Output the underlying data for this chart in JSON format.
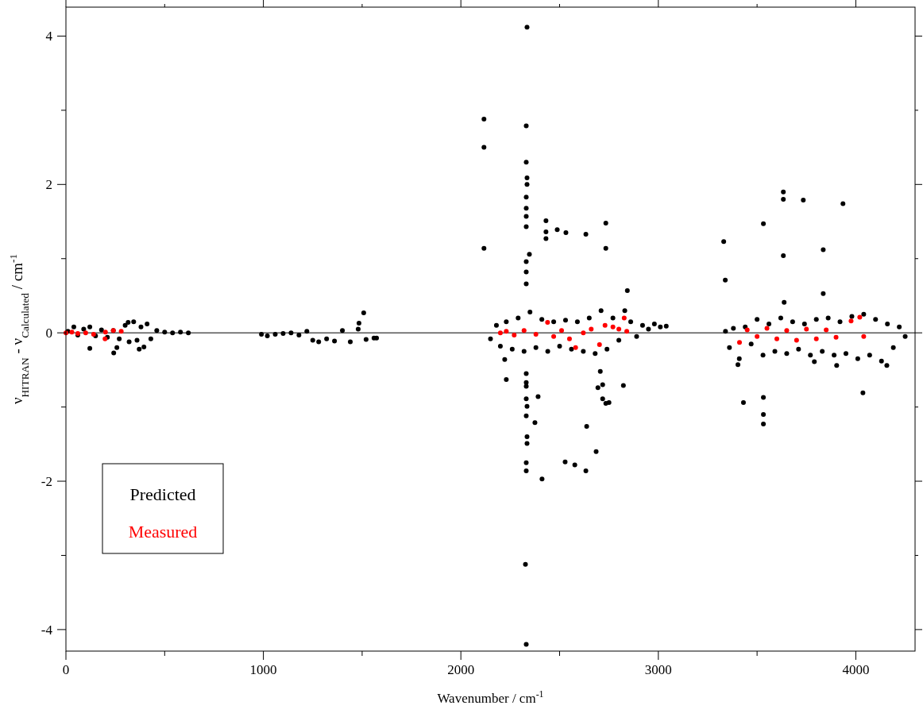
{
  "chart_data": {
    "type": "scatter",
    "xlabel": "Wavenumber / cm$^{-1}$",
    "ylabel": "ν$_{HITRAN}$ - ν$_{Calculated}$ / cm$^{-1}$",
    "xlim": [
      0,
      4300
    ],
    "ylim": [
      -4.29,
      4.39
    ],
    "xticks": [
      0,
      {
        "value": 500,
        "label": null
      },
      1000,
      {
        "value": 1500,
        "label": null
      },
      2000,
      {
        "value": 2500,
        "label": null
      },
      3000,
      {
        "value": 3500,
        "label": null
      },
      4000
    ],
    "yticks": [
      -4,
      {
        "value": -3,
        "label": null
      },
      -2,
      {
        "value": -1,
        "label": null
      },
      0,
      {
        "value": 1,
        "label": null
      },
      2,
      {
        "value": 3,
        "label": null
      },
      4
    ],
    "grid": false,
    "legend": "bottom left",
    "marker": "circle",
    "ref_lines": [
      {
        "axis": "y",
        "value": 0,
        "color": "#000000"
      }
    ],
    "series": [
      {
        "name": "Predicted",
        "color": "#000000",
        "x": [
          10,
          40,
          60,
          90,
          121,
          150,
          180,
          210,
          240,
          270,
          300,
          320,
          343,
          360,
          380,
          411,
          430,
          460,
          500,
          540,
          580,
          620,
          121,
          242,
          258,
          371,
          395,
          315,
          990,
          1020,
          1060,
          1100,
          1140,
          1180,
          1220,
          1250,
          1280,
          1320,
          1360,
          1400,
          1440,
          1480,
          1520,
          1560,
          1508,
          1484,
          1573,
          2150,
          2180,
          2200,
          2230,
          2260,
          2290,
          2320,
          2350,
          2380,
          2410,
          2440,
          2470,
          2500,
          2530,
          2560,
          2590,
          2620,
          2650,
          2680,
          2710,
          2740,
          2770,
          2800,
          2830,
          2860,
          2890,
          2920,
          2950,
          2980,
          3010,
          3040,
          2335,
          2117,
          2117,
          2331,
          2331,
          2335,
          2335,
          2331,
          2331,
          2331,
          2331,
          2117,
          2347,
          2331,
          2331,
          2331,
          2431,
          2431,
          2431,
          2488,
          2532,
          2633,
          2734,
          2734,
          2843,
          2222,
          2230,
          2331,
          2331,
          2331,
          2331,
          2335,
          2391,
          2331,
          2375,
          2335,
          2335,
          2331,
          2331,
          2411,
          2528,
          2577,
          2633,
          2685,
          2637,
          2694,
          2718,
          2718,
          2734,
          2750,
          2823,
          2706,
          2327,
          2331,
          3340,
          3360,
          3380,
          3410,
          3440,
          3470,
          3500,
          3530,
          3560,
          3590,
          3620,
          3650,
          3680,
          3710,
          3740,
          3770,
          3800,
          3830,
          3860,
          3890,
          3920,
          3950,
          3980,
          4010,
          4040,
          4070,
          4100,
          4130,
          4160,
          4190,
          4220,
          4250,
          3633,
          3633,
          3734,
          3935,
          3532,
          3331,
          3835,
          3633,
          3339,
          3835,
          3637,
          3431,
          3532,
          3532,
          3532,
          4036,
          3403,
          3903,
          4157,
          3790
        ],
        "values": [
          0.02,
          0.08,
          -0.03,
          0.05,
          0.08,
          -0.04,
          0.04,
          -0.06,
          0.03,
          -0.08,
          0.1,
          -0.12,
          0.15,
          -0.1,
          0.08,
          0.12,
          -0.08,
          0.03,
          0.01,
          0,
          0.01,
          0,
          -0.21,
          -0.27,
          -0.2,
          -0.22,
          -0.19,
          0.14,
          -0.02,
          -0.04,
          -0.02,
          -0.01,
          0,
          -0.03,
          0.02,
          -0.1,
          -0.12,
          -0.08,
          -0.11,
          0.03,
          -0.12,
          0.05,
          -0.09,
          -0.07,
          0.27,
          0.13,
          -0.07,
          -0.08,
          0.1,
          -0.18,
          0.15,
          -0.22,
          0.2,
          -0.25,
          0.28,
          -0.2,
          0.18,
          -0.25,
          0.15,
          -0.18,
          0.17,
          -0.22,
          0.15,
          -0.25,
          0.2,
          -0.28,
          0.3,
          -0.22,
          0.2,
          -0.1,
          0.3,
          0.15,
          -0.05,
          0.1,
          0.05,
          0.12,
          0.08,
          0.09,
          4.12,
          2.88,
          2.5,
          2.79,
          2.3,
          2.09,
          2.0,
          1.83,
          1.68,
          1.57,
          1.43,
          1.14,
          1.06,
          0.96,
          0.82,
          0.66,
          1.51,
          1.36,
          1.27,
          1.39,
          1.35,
          1.33,
          1.48,
          1.14,
          0.57,
          -0.36,
          -0.63,
          -0.55,
          -0.67,
          -0.72,
          -0.89,
          -0.99,
          -0.86,
          -1.12,
          -1.21,
          -1.4,
          -1.49,
          -1.75,
          -1.86,
          -1.97,
          -1.74,
          -1.78,
          -1.86,
          -1.6,
          -1.26,
          -0.74,
          -0.7,
          -0.89,
          -0.95,
          -0.94,
          -0.71,
          -0.52,
          -3.12,
          -4.2,
          0.02,
          -0.2,
          0.06,
          -0.35,
          0.08,
          -0.15,
          0.18,
          -0.3,
          0.12,
          -0.25,
          0.2,
          -0.28,
          0.15,
          -0.22,
          0.12,
          -0.3,
          0.18,
          -0.25,
          0.2,
          -0.3,
          0.15,
          -0.28,
          0.22,
          -0.35,
          0.25,
          -0.3,
          0.18,
          -0.38,
          0.12,
          -0.2,
          0.08,
          -0.05,
          1.9,
          1.8,
          1.79,
          1.74,
          1.47,
          1.23,
          1.12,
          1.04,
          0.71,
          0.53,
          0.41,
          -0.94,
          -0.87,
          -1.1,
          -1.23,
          -0.81,
          -0.43,
          -0.44,
          -0.44,
          -0.39
        ]
      },
      {
        "name": "Measured",
        "color": "#ff0000",
        "x": [
          0,
          30,
          60,
          100,
          140,
          198,
          200,
          240,
          280,
          2200,
          2230,
          2270,
          2320,
          2380,
          2439,
          2470,
          2510,
          2550,
          2581,
          2620,
          2660,
          2702,
          2730,
          2770,
          2827,
          2800,
          2840,
          3411,
          3450,
          3500,
          3550,
          3600,
          3650,
          3700,
          3750,
          3800,
          3850,
          3900,
          3976,
          4020,
          4040
        ],
        "values": [
          0,
          0.01,
          -0.01,
          0,
          -0.02,
          -0.08,
          0.01,
          0.03,
          0.02,
          0,
          0.02,
          -0.03,
          0.03,
          -0.02,
          0.14,
          -0.05,
          0.03,
          -0.08,
          -0.2,
          0,
          0.05,
          -0.16,
          0.1,
          0.08,
          0.2,
          0.05,
          0.02,
          -0.13,
          0.04,
          -0.05,
          0.06,
          -0.08,
          0.03,
          -0.1,
          0.05,
          -0.08,
          0.04,
          -0.06,
          0.16,
          0.21,
          -0.05
        ]
      }
    ]
  }
}
